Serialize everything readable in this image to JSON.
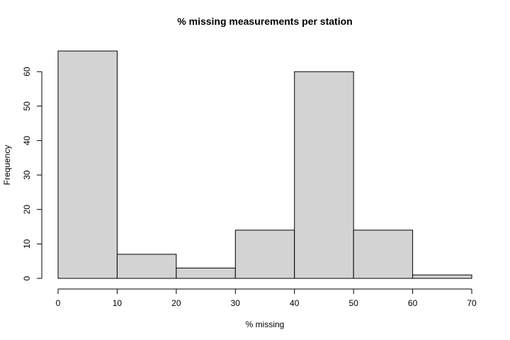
{
  "chart_data": {
    "type": "bar",
    "title": "% missing measurements per station",
    "xlabel": "% missing",
    "ylabel": "Frequency",
    "bins": [
      {
        "from": 0,
        "to": 10,
        "count": 66
      },
      {
        "from": 10,
        "to": 20,
        "count": 7
      },
      {
        "from": 20,
        "to": 30,
        "count": 3
      },
      {
        "from": 30,
        "to": 40,
        "count": 14
      },
      {
        "from": 40,
        "to": 50,
        "count": 60
      },
      {
        "from": 50,
        "to": 60,
        "count": 14
      },
      {
        "from": 60,
        "to": 70,
        "count": 1
      }
    ],
    "xlim": [
      0,
      70
    ],
    "ylim": [
      0,
      66
    ],
    "x_ticks": [
      0,
      10,
      20,
      30,
      40,
      50,
      60,
      70
    ],
    "y_ticks": [
      0,
      10,
      20,
      30,
      40,
      50,
      60
    ],
    "grid": false,
    "bar_fill": "#d3d3d3",
    "bar_stroke": "#000000"
  }
}
